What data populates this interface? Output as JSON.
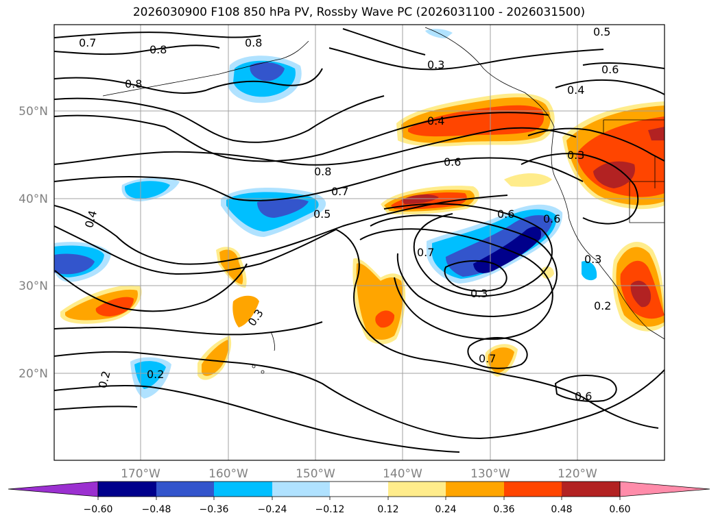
{
  "title": "2026030900 F108 850 hPa PV, Rossby Wave PC (2026031100 - 2026031500)",
  "lat_labels": [
    "50°N",
    "40°N",
    "30°N",
    "20°N"
  ],
  "lon_labels": [
    "170°W",
    "160°W",
    "150°W",
    "140°W",
    "130°W",
    "120°W"
  ],
  "contour_labels": [
    "0.7",
    "0.8",
    "0.8",
    "0.8",
    "0.5",
    "0.3",
    "0.6",
    "0.4",
    "0.4",
    "0.6",
    "0.8",
    "0.7",
    "0.5",
    "0.4",
    "0.3",
    "0.6",
    "0.6",
    "0.7",
    "0.3",
    "0.3",
    "0.3",
    "0.2",
    "0.2",
    "0.2",
    "0.7",
    "0.6"
  ],
  "colorbar": {
    "colors": [
      "#9b30d0",
      "#00008b",
      "#3355cc",
      "#00bfff",
      "#b0e2ff",
      "#ffffff",
      "#ffec8b",
      "#ffa500",
      "#ff4500",
      "#b22222",
      "#ff8caa"
    ],
    "tick_labels": [
      "−0.60",
      "−0.48",
      "−0.36",
      "−0.24",
      "−0.12",
      "0.12",
      "0.24",
      "0.36",
      "0.48",
      "0.60"
    ]
  },
  "colors": {
    "line": "#000000",
    "grid": "#a0a0a0",
    "axis_label": "#808080"
  }
}
